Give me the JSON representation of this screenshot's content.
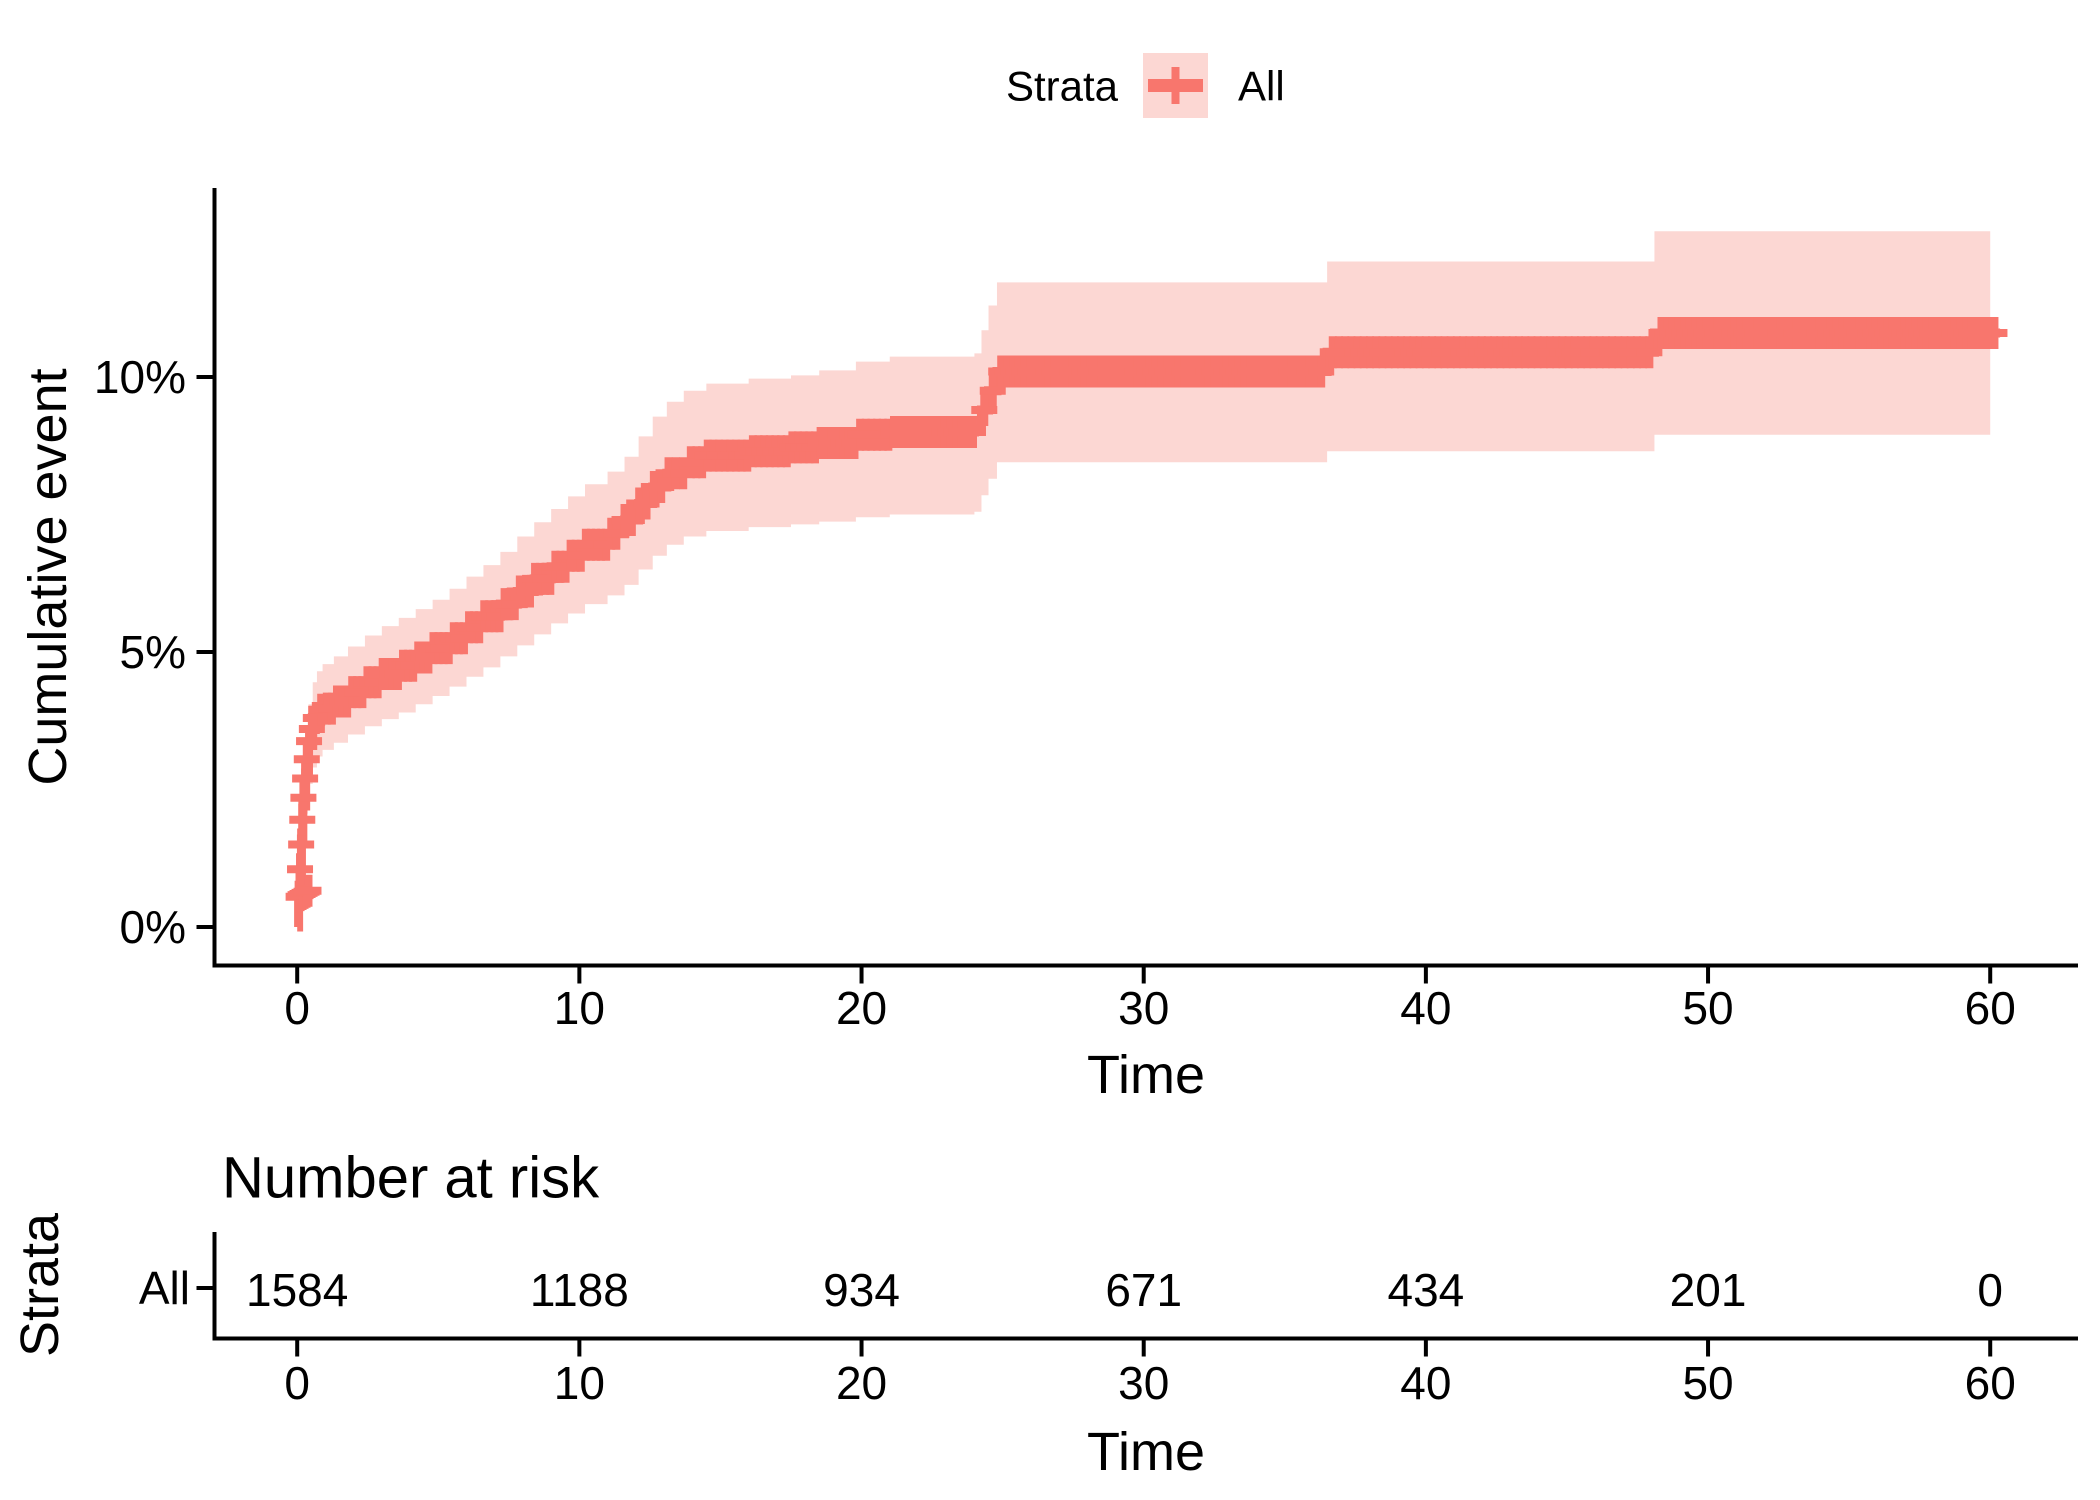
{
  "colors": {
    "stroke": "#F8766D",
    "band": "#FCD7D3",
    "axis": "#000000",
    "text": "#000000"
  },
  "legend": {
    "title": "Strata",
    "item": "All",
    "key_icon": "plus-cross"
  },
  "main_plot": {
    "ylabel": "Cumulative event",
    "xlabel": "Time",
    "y_tick_labels": [
      "0%",
      "5%",
      "10%"
    ],
    "x_tick_labels": [
      "0",
      "10",
      "20",
      "30",
      "40",
      "50",
      "60"
    ]
  },
  "risk_table": {
    "title": "Number at risk",
    "strata_axis_label": "Strata",
    "row_label": "All",
    "values": [
      "1584",
      "1188",
      "934",
      "671",
      "434",
      "201",
      "0"
    ],
    "x_tick_labels": [
      "0",
      "10",
      "20",
      "30",
      "40",
      "50",
      "60"
    ],
    "xlabel": "Time"
  },
  "chart_data": {
    "type": "line",
    "subtype": "kaplan-meier-cumulative-event-step-curve-with-confidence-band",
    "title": "",
    "xlabel": "Time",
    "ylabel": "Cumulative event",
    "xlim": [
      0,
      60
    ],
    "ylim_percent": [
      0,
      13.4
    ],
    "x_tick_values": [
      0,
      10,
      20,
      30,
      40,
      50,
      60
    ],
    "y_tick_values": [
      0,
      5,
      10
    ],
    "y_tick_labels": [
      "0%",
      "5%",
      "10%"
    ],
    "legend": {
      "title": "Strata",
      "position": "top"
    },
    "series": [
      {
        "name": "All",
        "color": "#F8766D",
        "band_color": "#FCD7D3",
        "knots_t_est_lo_hi": [
          [
            0,
            0,
            0,
            0
          ],
          [
            0.05,
            0.5,
            0.2,
            0.85
          ],
          [
            0.1,
            1.0,
            0.6,
            1.5
          ],
          [
            0.15,
            1.6,
            1.1,
            2.2
          ],
          [
            0.2,
            2.2,
            1.6,
            2.85
          ],
          [
            0.3,
            2.8,
            2.15,
            3.5
          ],
          [
            0.4,
            3.3,
            2.6,
            4.05
          ],
          [
            0.55,
            3.65,
            2.9,
            4.45
          ],
          [
            0.7,
            3.85,
            3.1,
            4.65
          ],
          [
            0.9,
            3.97,
            3.22,
            4.78
          ],
          [
            1.3,
            4.1,
            3.35,
            4.92
          ],
          [
            1.8,
            4.27,
            3.5,
            5.1
          ],
          [
            2.4,
            4.45,
            3.65,
            5.3
          ],
          [
            3.0,
            4.6,
            3.78,
            5.47
          ],
          [
            3.6,
            4.75,
            3.9,
            5.62
          ],
          [
            4.2,
            4.9,
            4.05,
            5.78
          ],
          [
            4.8,
            5.07,
            4.2,
            5.95
          ],
          [
            5.4,
            5.25,
            4.37,
            6.15
          ],
          [
            6.0,
            5.45,
            4.55,
            6.37
          ],
          [
            6.6,
            5.65,
            4.72,
            6.58
          ],
          [
            7.2,
            5.87,
            4.92,
            6.82
          ],
          [
            7.8,
            6.1,
            5.12,
            7.1
          ],
          [
            8.4,
            6.33,
            5.32,
            7.36
          ],
          [
            9.0,
            6.55,
            5.52,
            7.6
          ],
          [
            9.6,
            6.75,
            5.7,
            7.83
          ],
          [
            10.2,
            6.95,
            5.87,
            8.05
          ],
          [
            11.0,
            7.15,
            6.03,
            8.28
          ],
          [
            11.6,
            7.4,
            6.22,
            8.55
          ],
          [
            12.1,
            7.7,
            6.5,
            8.92
          ],
          [
            12.6,
            8.0,
            6.75,
            9.28
          ],
          [
            13.1,
            8.25,
            6.95,
            9.55
          ],
          [
            13.7,
            8.45,
            7.1,
            9.75
          ],
          [
            14.5,
            8.57,
            7.2,
            9.88
          ],
          [
            16.0,
            8.65,
            7.27,
            9.97
          ],
          [
            17.5,
            8.72,
            7.32,
            10.03
          ],
          [
            18.5,
            8.8,
            7.37,
            10.12
          ],
          [
            19.8,
            8.95,
            7.45,
            10.28
          ],
          [
            21.0,
            9.0,
            7.5,
            10.37
          ],
          [
            24.0,
            9.05,
            7.55,
            10.43
          ],
          [
            24.25,
            9.4,
            7.85,
            10.85
          ],
          [
            24.5,
            9.75,
            8.15,
            11.3
          ],
          [
            24.8,
            10.1,
            8.45,
            11.72
          ],
          [
            36.5,
            10.45,
            8.65,
            12.1
          ],
          [
            48.1,
            10.8,
            8.95,
            12.65
          ],
          [
            60.0,
            10.8,
            8.95,
            12.65
          ]
        ],
        "line_end_t": 60.35,
        "censor_points_t_pct": [
          [
            0.05,
            0.55
          ],
          [
            0.12,
            0.58
          ],
          [
            0.19,
            0.6
          ],
          [
            0.26,
            0.62
          ],
          [
            0.33,
            0.64
          ],
          [
            0.4,
            0.66
          ],
          [
            0.1,
            1.05
          ],
          [
            0.14,
            1.5
          ],
          [
            0.18,
            1.95
          ],
          [
            0.22,
            2.35
          ],
          [
            0.28,
            2.7
          ],
          [
            0.34,
            3.05
          ],
          [
            0.42,
            3.38
          ],
          [
            0.52,
            3.6
          ],
          [
            0.66,
            3.8
          ],
          [
            0.85,
            3.95
          ]
        ],
        "censor_runs": [
          {
            "from": 1.05,
            "to": 11.35,
            "step": 0.18
          },
          {
            "from": 11.6,
            "to": 13.7,
            "step": 0.26
          },
          {
            "from": 13.95,
            "to": 24.05,
            "step": 0.2
          },
          {
            "from": 24.35,
            "to": 24.65,
            "step": 0.3
          },
          {
            "from": 24.95,
            "to": 36.35,
            "step": 0.21
          },
          {
            "from": 36.7,
            "to": 47.95,
            "step": 0.22
          },
          {
            "from": 48.35,
            "to": 60.2,
            "step": 0.2
          }
        ]
      }
    ],
    "risk_table": {
      "title": "Number at risk",
      "strata_axis_label": "Strata",
      "xlabel": "Time",
      "rows": [
        {
          "label": "All",
          "times": [
            0,
            10,
            20,
            30,
            40,
            50,
            60
          ],
          "values": [
            1584,
            1188,
            934,
            671,
            434,
            201,
            0
          ]
        }
      ]
    }
  }
}
